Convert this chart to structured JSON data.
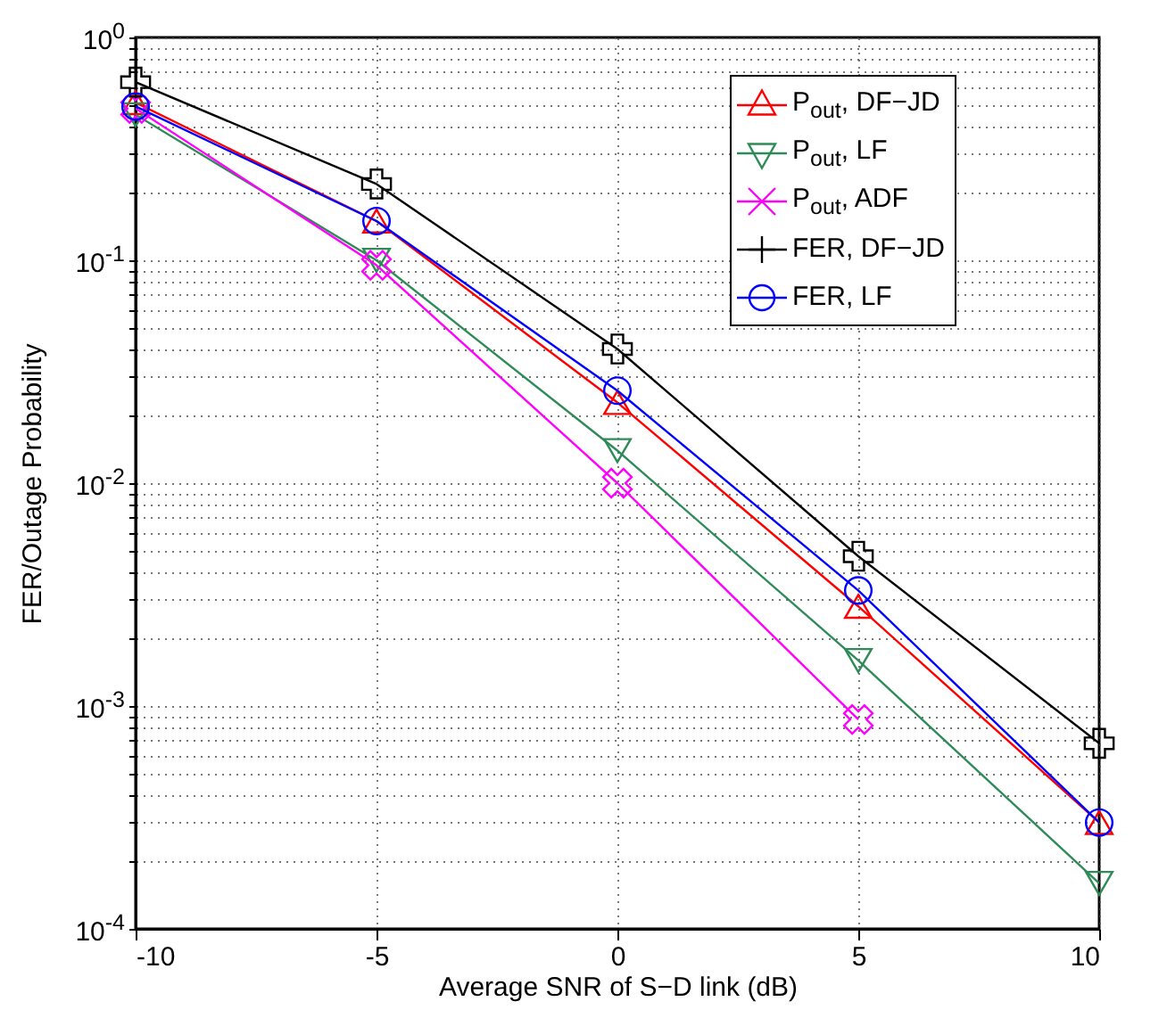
{
  "chart_data": {
    "type": "line",
    "xlabel": "Average SNR of S−D link (dB)",
    "ylabel": "FER/Outage Probability",
    "x": [
      -10,
      -5,
      0,
      5,
      10
    ],
    "series": [
      {
        "name": "P$_{out}$, DF−JD",
        "color": "#ff0000",
        "marker": "triangle",
        "values": [
          0.51,
          0.15,
          0.023,
          0.0028,
          0.0003
        ]
      },
      {
        "name": "P$_{out}$, LF",
        "color": "#2e8b57",
        "marker": "triangle-down",
        "values": [
          0.45,
          0.1,
          0.014,
          0.0016,
          0.00016
        ]
      },
      {
        "name": "P$_{out}$, ADF",
        "color": "#ff00ff",
        "marker": "x",
        "values": [
          0.48,
          0.095,
          0.01,
          0.00087,
          null
        ]
      },
      {
        "name": "FER, DF−JD",
        "color": "#000000",
        "marker": "cross",
        "values": [
          0.63,
          0.22,
          0.04,
          0.0047,
          0.00068
        ]
      },
      {
        "name": "FER, LF",
        "color": "#0000ff",
        "marker": "circle",
        "values": [
          0.49,
          0.15,
          0.026,
          0.0033,
          0.0003
        ]
      }
    ],
    "xlim": [
      -10,
      10
    ],
    "xticks": [
      -10,
      -5,
      0,
      5,
      10
    ],
    "ylim": [
      0.0001,
      1
    ],
    "yticks": [
      {
        "value": 0.0001,
        "label": "10$^{-4}$"
      },
      {
        "value": 0.001,
        "label": "10$^{-3}$"
      },
      {
        "value": 0.01,
        "label": "10$^{-2}$"
      },
      {
        "value": 0.1,
        "label": "10$^{-1}$"
      },
      {
        "value": 1,
        "label": "10$^{0}$"
      }
    ],
    "log": "y",
    "grid": true,
    "legend": "top right",
    "line_style": "solid"
  }
}
